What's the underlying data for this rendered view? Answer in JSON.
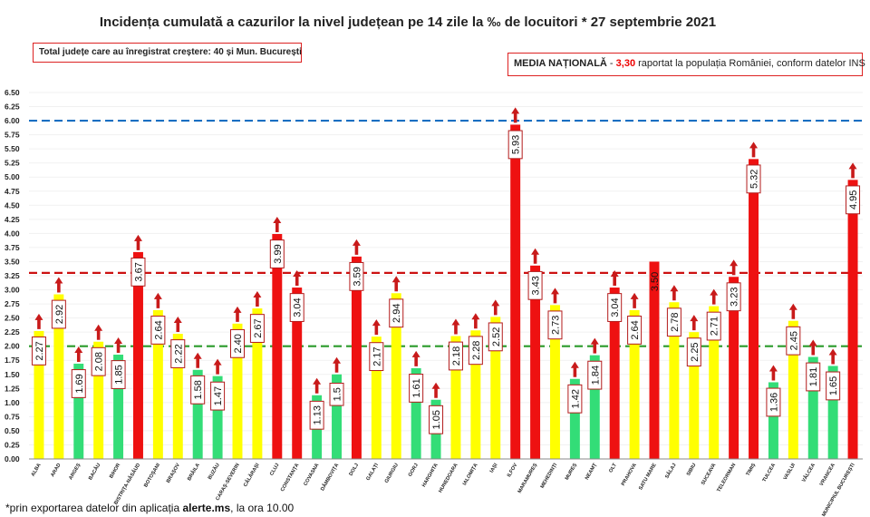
{
  "page": {
    "title": "Incidența cumulată a cazurilor la nivel județean pe 14 zile la ‰ de locuitori * 27 septembrie 2021",
    "info_box": "Total județe care au înregistrat creștere:  40 și Mun. București",
    "media": {
      "label": "MEDIA NAȚIONALĂ",
      "sep": " - ",
      "value": "3,30",
      "text": " raportat la populația României, conform datelor INS"
    },
    "footnote": {
      "pre": "*prin exportarea datelor din aplicația ",
      "bold": "alerte.ms",
      "post": ", la ora 10.00"
    }
  },
  "colors": {
    "red": "#ee1111",
    "yellow": "#ffff00",
    "green": "#33dd77",
    "arrow": "#c81a1a",
    "line_high": "#1a6fc2",
    "line_mid": "#cc1111",
    "line_low": "#2a9a2a"
  },
  "chart_data": {
    "type": "bar",
    "title": "Incidența cumulată a cazurilor la nivel județean pe 14 zile la ‰ de locuitori * 27 septembrie 2021",
    "ylim": [
      0,
      6.5
    ],
    "ytick_step": 0.25,
    "ytick_labels": [
      "0.00",
      "0.25",
      "0.50",
      "0.75",
      "1.00",
      "1.25",
      "1.50",
      "1.75",
      "2.00",
      "2.25",
      "2.50",
      "2.75",
      "3.00",
      "3.25",
      "3.50",
      "3.75",
      "4.00",
      "4.25",
      "4.50",
      "4.75",
      "5.00",
      "5.25",
      "5.50",
      "5.75",
      "6.00",
      "6.25",
      "6.50"
    ],
    "categories": [
      "ALBA",
      "ARAD",
      "ARGEȘ",
      "BACĂU",
      "BIHOR",
      "BISTRIȚA-NĂSĂUD",
      "BOTOȘANI",
      "BRAȘOV",
      "BRĂILA",
      "BUZĂU",
      "CARAȘ-SEVERIN",
      "CĂLĂRAȘI",
      "CLUJ",
      "CONSTANȚA",
      "COVASNA",
      "DÂMBOVIȚA",
      "DOLJ",
      "GALAȚI",
      "GIURGIU",
      "GORJ",
      "HARGHITA",
      "HUNEDOARA",
      "IALOMIȚA",
      "IAȘI",
      "ILFOV",
      "MARAMUREȘ",
      "MEHEDINȚI",
      "MUREȘ",
      "NEAMȚ",
      "OLT",
      "PRAHOVA",
      "SATU MARE",
      "SĂLAJ",
      "SIBIU",
      "SUCEAVA",
      "TELEORMAN",
      "TIMIȘ",
      "TULCEA",
      "VASLUI",
      "VÂLCEA",
      "VRANCEA",
      "MUNICIPIUL BUCUREȘTI"
    ],
    "values": [
      2.27,
      2.92,
      1.69,
      2.08,
      1.85,
      3.67,
      2.64,
      2.22,
      1.58,
      1.47,
      2.4,
      2.67,
      3.99,
      3.04,
      1.13,
      1.5,
      3.59,
      2.17,
      2.94,
      1.61,
      1.05,
      2.18,
      2.28,
      2.52,
      5.93,
      3.43,
      2.73,
      1.42,
      1.84,
      3.04,
      2.64,
      3.5,
      2.78,
      2.25,
      2.71,
      3.23,
      5.32,
      1.36,
      2.45,
      1.81,
      1.65,
      4.95
    ],
    "value_labels": [
      "2.27",
      "2.92",
      "1.69",
      "2.08",
      "1.85",
      "3.67",
      "2.64",
      "2.22",
      "1.58",
      "1.47",
      "2.40",
      "2.67",
      "3.99",
      "3.04",
      "1.13",
      "1.5",
      "3.59",
      "2.17",
      "2.94",
      "1.61",
      "1.05",
      "2.18",
      "2.28",
      "2.52",
      "5.93",
      "3.43",
      "2.73",
      "1.42",
      "1.84",
      "3.04",
      "2.64",
      "3.50",
      "2.78",
      "2.25",
      "2.71",
      "3.23",
      "5.32",
      "1.36",
      "2.45",
      "1.81",
      "1.65",
      "4.95"
    ],
    "bar_colors": [
      "yellow",
      "yellow",
      "green",
      "yellow",
      "green",
      "red",
      "yellow",
      "yellow",
      "green",
      "green",
      "yellow",
      "yellow",
      "red",
      "red",
      "green",
      "green",
      "red",
      "yellow",
      "yellow",
      "green",
      "green",
      "yellow",
      "yellow",
      "yellow",
      "red",
      "red",
      "yellow",
      "green",
      "green",
      "red",
      "yellow",
      "red",
      "yellow",
      "yellow",
      "yellow",
      "red",
      "red",
      "green",
      "yellow",
      "green",
      "green",
      "red"
    ],
    "increase_arrow": [
      true,
      true,
      true,
      true,
      true,
      true,
      true,
      true,
      true,
      true,
      true,
      true,
      true,
      true,
      true,
      true,
      true,
      true,
      true,
      true,
      true,
      true,
      true,
      true,
      true,
      true,
      true,
      true,
      true,
      true,
      true,
      false,
      true,
      true,
      true,
      true,
      true,
      true,
      true,
      true,
      true,
      true
    ],
    "label_boxed": [
      true,
      true,
      true,
      true,
      true,
      true,
      true,
      true,
      true,
      true,
      true,
      true,
      true,
      true,
      true,
      true,
      true,
      true,
      true,
      true,
      true,
      true,
      true,
      true,
      true,
      true,
      true,
      true,
      true,
      true,
      true,
      false,
      true,
      true,
      true,
      true,
      true,
      true,
      true,
      true,
      true,
      true
    ],
    "reference_lines": [
      {
        "value": 6.0,
        "color": "line_high"
      },
      {
        "value": 3.3,
        "color": "line_mid"
      },
      {
        "value": 2.0,
        "color": "line_low"
      }
    ],
    "xlabel": "",
    "ylabel": ""
  }
}
